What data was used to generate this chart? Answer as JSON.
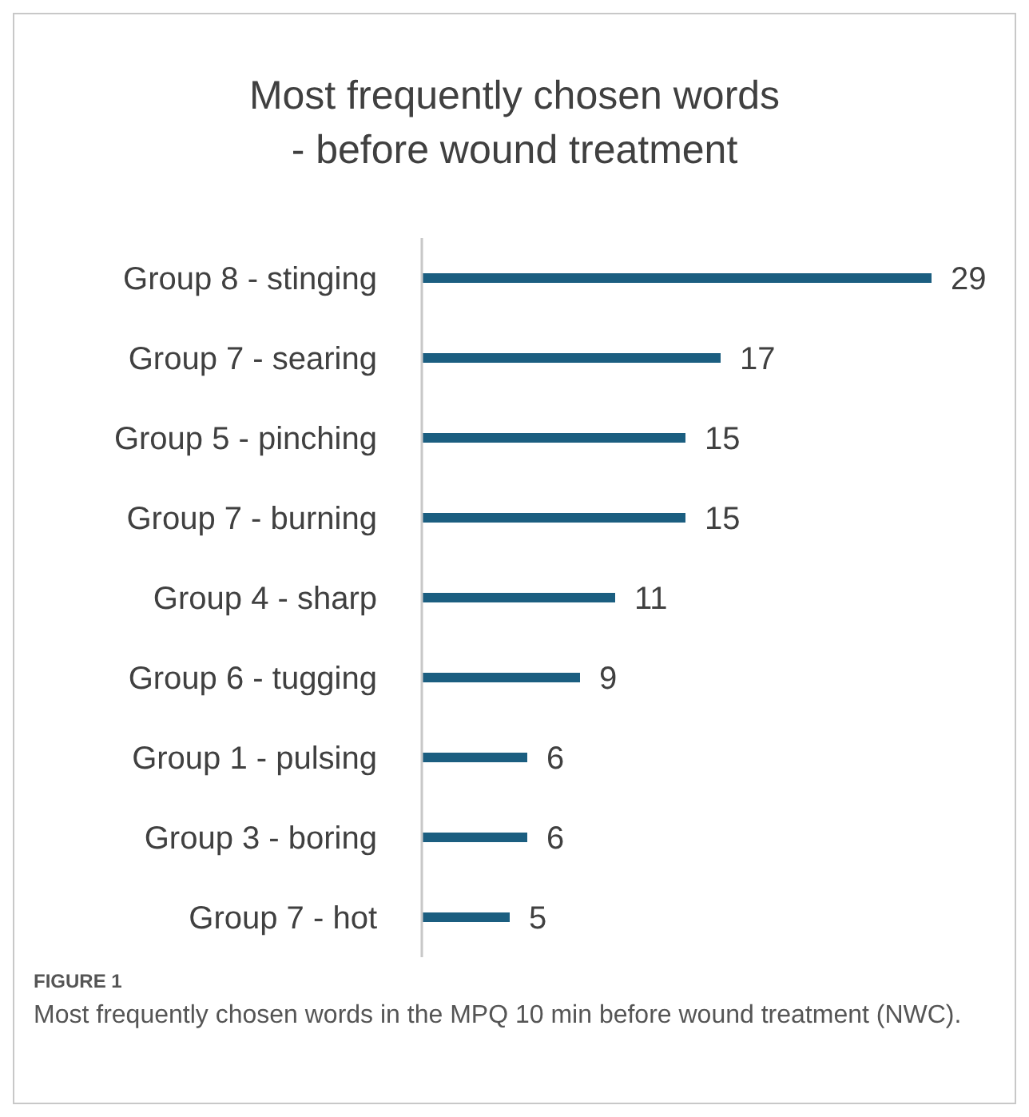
{
  "chart_data": {
    "type": "bar",
    "orientation": "horizontal",
    "title": "Most frequently chosen words\n- before wound treatment",
    "categories": [
      "Group 8 - stinging",
      "Group 7 - searing",
      "Group 5 - pinching",
      "Group 7 - burning",
      "Group 4 - sharp",
      "Group 6 - tugging",
      "Group 1 - pulsing",
      "Group 3 - boring",
      "Group 7 - hot"
    ],
    "values": [
      29,
      17,
      15,
      15,
      11,
      9,
      6,
      6,
      5
    ],
    "color": "#1b5e80",
    "data_labels": true,
    "grid": false,
    "legend": false,
    "tick_labels": "y",
    "annotations": [
      "FIGURE 1",
      "Most frequently chosen words in the MPQ 10 min before wound treatment (NWC)."
    ]
  }
}
